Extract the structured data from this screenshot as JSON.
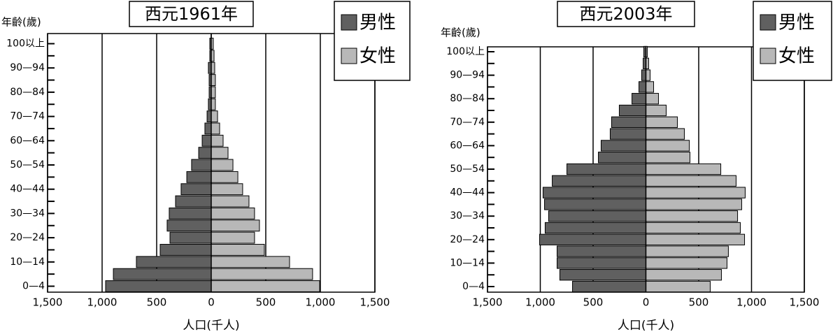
{
  "chart_data": [
    {
      "type": "pyramid",
      "title": "西元1961年",
      "ylabel": "年齡(歲)",
      "xlabel": "人口(千人)",
      "categories": [
        "0—4",
        null,
        "10—14",
        null,
        "20—24",
        null,
        "30—34",
        null,
        "40—44",
        null,
        "50—54",
        null,
        "60—64",
        null,
        "70—74",
        null,
        "80—84",
        null,
        "90—94",
        null,
        "100以上"
      ],
      "series": [
        {
          "name": "男性",
          "color": "#606060",
          "values": [
            968,
            897,
            686,
            468,
            378,
            404,
            385,
            327,
            276,
            224,
            180,
            115,
            83,
            58,
            38,
            26,
            19,
            19,
            26,
            13,
            13
          ]
        },
        {
          "name": "女性",
          "color": "#b8b8b8",
          "values": [
            994,
            929,
            718,
            487,
            397,
            442,
            397,
            346,
            288,
            244,
            199,
            154,
            109,
            77,
            58,
            38,
            38,
            38,
            32,
            26,
            19
          ]
        }
      ],
      "xlim": [
        -1500,
        1500
      ],
      "xticks": [
        {
          "value": -1500,
          "label": "1,500"
        },
        {
          "value": -1000,
          "label": "1,000"
        },
        {
          "value": -500,
          "label": "500"
        },
        0,
        500,
        {
          "value": 1000,
          "label": "1,000"
        },
        {
          "value": 1500,
          "label": "1,500"
        }
      ],
      "grid": true,
      "legend": "top-right"
    },
    {
      "type": "pyramid",
      "title": "西元2003年",
      "ylabel": "年齡(歲)",
      "xlabel": "人口(千人)",
      "categories": [
        "0—4",
        null,
        "10—14",
        null,
        "20—24",
        null,
        "30—34",
        null,
        "40—44",
        null,
        "50—54",
        null,
        "60—64",
        null,
        "70—74",
        null,
        "80—84",
        null,
        "90—94",
        null,
        "100以上"
      ],
      "series": [
        {
          "name": "男性",
          "color": "#606060",
          "values": [
            695,
            815,
            841,
            841,
            1007,
            954,
            921,
            960,
            974,
            887,
            748,
            450,
            424,
            338,
            325,
            252,
            132,
            66,
            40,
            26,
            20
          ]
        },
        {
          "name": "女性",
          "color": "#b8b8b8",
          "values": [
            609,
            715,
            768,
            781,
            934,
            894,
            868,
            907,
            940,
            854,
            709,
            417,
            411,
            364,
            298,
            192,
            119,
            73,
            40,
            26,
            13
          ]
        }
      ],
      "xlim": [
        -1500,
        1500
      ],
      "xticks": [
        {
          "value": -1500,
          "label": "1,500"
        },
        {
          "value": -1000,
          "label": "1,000"
        },
        {
          "value": -500,
          "label": "500"
        },
        0,
        500,
        {
          "value": 1000,
          "label": "1,000"
        },
        {
          "value": 1500,
          "label": "1,500"
        }
      ],
      "grid": true,
      "legend": "top-right"
    }
  ]
}
